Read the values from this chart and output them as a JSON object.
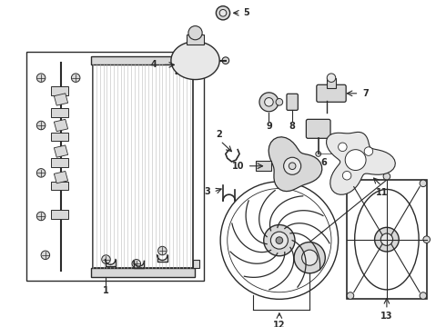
{
  "background_color": "#ffffff",
  "line_color": "#2a2a2a",
  "gray_fill": "#d8d8d8",
  "light_gray": "#e8e8e8",
  "dark_gray": "#999999"
}
